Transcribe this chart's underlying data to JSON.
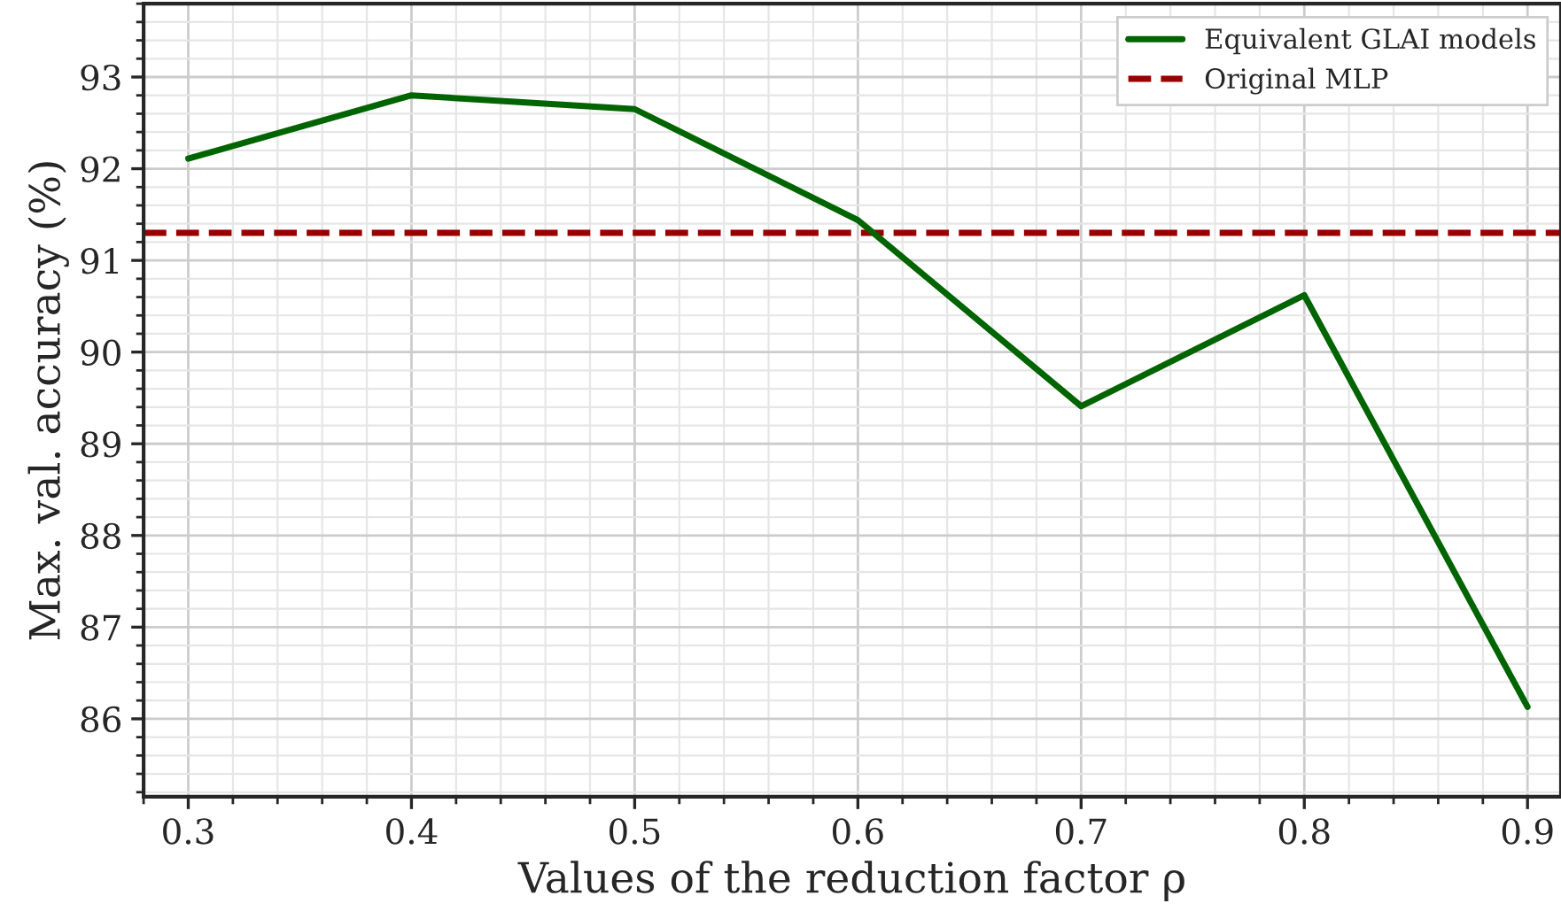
{
  "chart_data": {
    "type": "line",
    "xlabel": "Values of the reduction factor ρ",
    "ylabel": "Max. val. accuracy (%)",
    "x": [
      0.3,
      0.4,
      0.5,
      0.6,
      0.7,
      0.8,
      0.9
    ],
    "series": [
      {
        "name": "Equivalent GLAI models",
        "color": "#006400",
        "values": [
          92.11,
          92.8,
          92.65,
          91.44,
          89.41,
          90.62,
          86.13
        ]
      }
    ],
    "ref_lines": [
      {
        "axis": "y",
        "value": 91.3,
        "label": "Original MLP",
        "color": "#990000",
        "line_style": "dashed"
      }
    ],
    "xlim": [
      0.28,
      0.915
    ],
    "ylim": [
      85.15,
      93.8
    ],
    "xticks": [
      0.3,
      0.4,
      0.5,
      0.6,
      0.7,
      0.8,
      0.9
    ],
    "yticks": [
      86,
      87,
      88,
      89,
      90,
      91,
      92,
      93
    ],
    "grid": true,
    "legend": "top right",
    "line_style": "solid",
    "marker": "none"
  }
}
